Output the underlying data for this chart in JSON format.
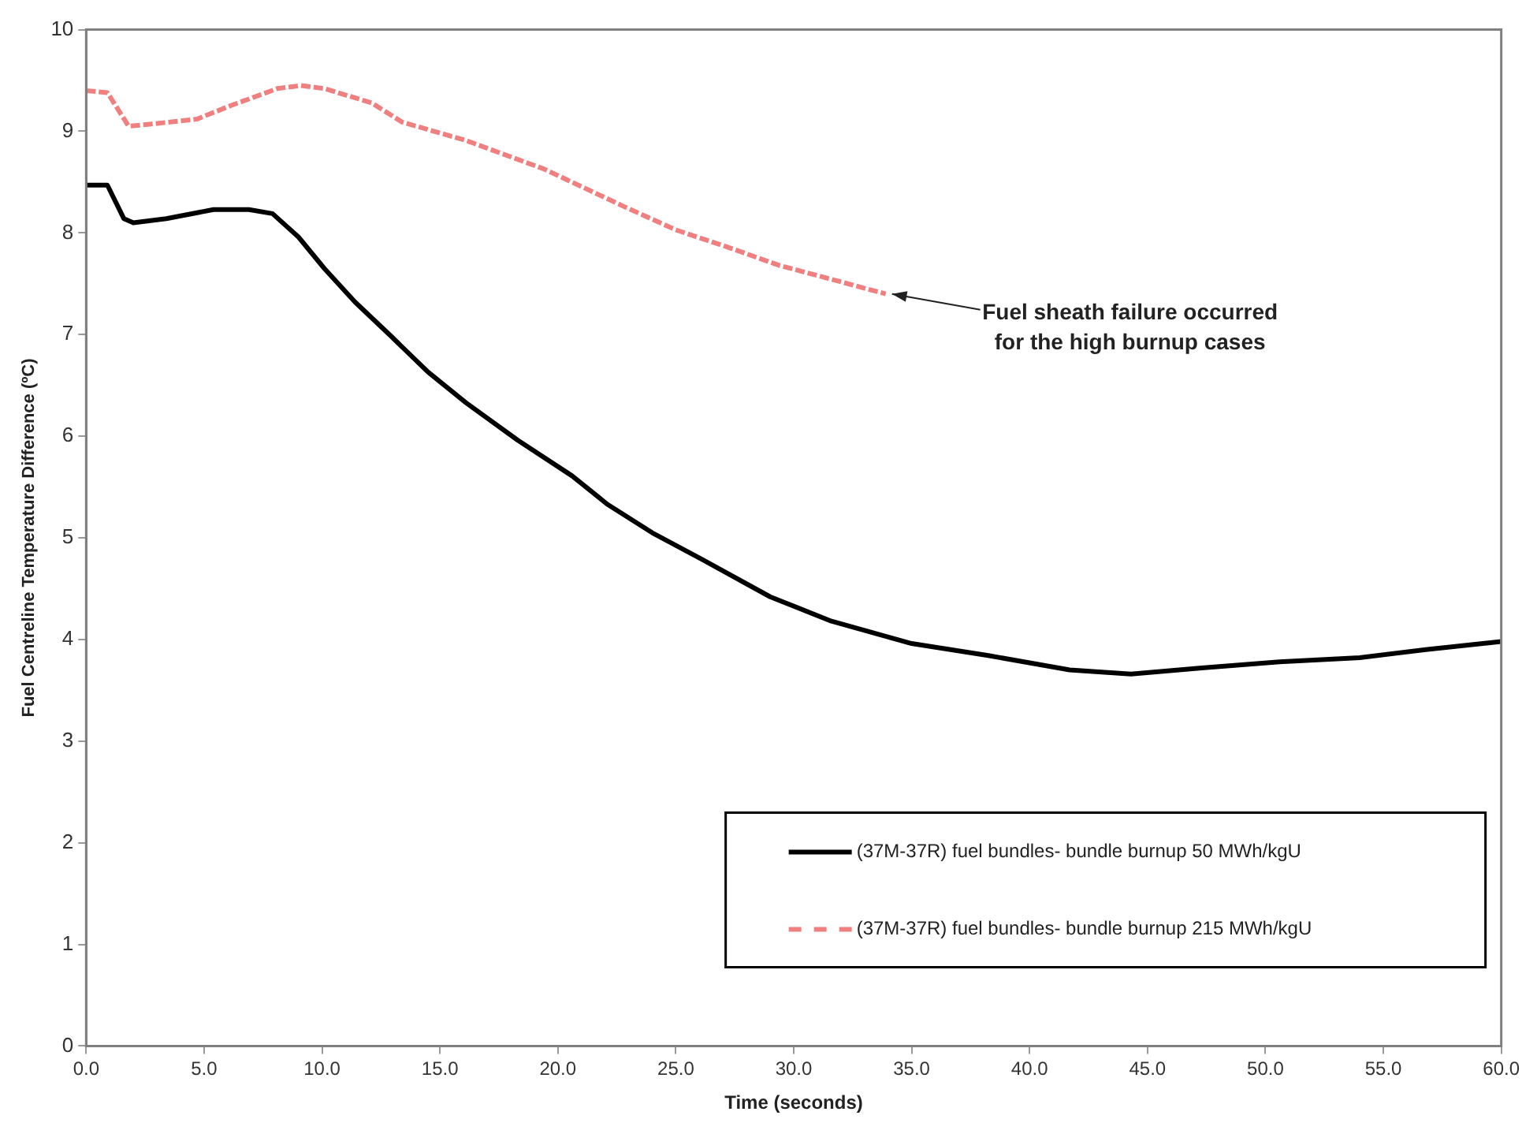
{
  "chart_data": {
    "type": "line",
    "xlabel": "Time (seconds)",
    "ylabel": "Fuel Centreline Temperature Difference (ºC)",
    "xlim": [
      0,
      60
    ],
    "ylim": [
      0,
      10
    ],
    "xticks": [
      {
        "value": 0,
        "label": "0.0"
      },
      {
        "value": 5,
        "label": "5.0"
      },
      {
        "value": 10,
        "label": "10.0"
      },
      {
        "value": 15,
        "label": "15.0"
      },
      {
        "value": 20,
        "label": "20.0"
      },
      {
        "value": 25,
        "label": "25.0"
      },
      {
        "value": 30,
        "label": "30.0"
      },
      {
        "value": 35,
        "label": "35.0"
      },
      {
        "value": 40,
        "label": "40.0"
      },
      {
        "value": 45,
        "label": "45.0"
      },
      {
        "value": 50,
        "label": "50.0"
      },
      {
        "value": 55,
        "label": "55.0"
      },
      {
        "value": 60,
        "label": "60.0"
      }
    ],
    "yticks": [
      0,
      1,
      2,
      3,
      4,
      5,
      6,
      7,
      8,
      9,
      10
    ],
    "grid": false,
    "legend": "bottom right",
    "marker": "none",
    "series": [
      {
        "name": "(37M-37R) fuel bundles- bundle burnup 50 MWh/kgU",
        "color": "#000000",
        "line_style": "solid",
        "x": [
          0,
          0.9,
          1.6,
          2.0,
          3.4,
          5.4,
          6.9,
          7.9,
          9.0,
          10.1,
          11.4,
          12.9,
          14.5,
          16.1,
          18.3,
          20.6,
          22.1,
          24,
          26.1,
          29,
          31.6,
          35,
          38.3,
          41.7,
          44.3,
          47.3,
          50.6,
          54,
          56.8,
          60
        ],
        "values": [
          8.47,
          8.47,
          8.14,
          8.1,
          8.14,
          8.23,
          8.23,
          8.19,
          7.96,
          7.65,
          7.32,
          6.99,
          6.63,
          6.33,
          5.96,
          5.61,
          5.33,
          5.05,
          4.79,
          4.42,
          4.18,
          3.96,
          3.84,
          3.7,
          3.66,
          3.72,
          3.78,
          3.82,
          3.9,
          3.98
        ]
      },
      {
        "name": "(37M-37R) fuel bundles- bundle burnup 215 MWh/kgU",
        "color": "#f08080",
        "line_style": "dashed",
        "x": [
          0,
          0.9,
          1.8,
          2.7,
          4.7,
          6.1,
          8.1,
          9.1,
          10.1,
          12.1,
          13.4,
          16.1,
          19.4,
          22.8,
          25,
          27.2,
          29.4,
          31.5,
          33.9
        ],
        "values": [
          9.4,
          9.38,
          9.05,
          9.07,
          9.12,
          9.25,
          9.42,
          9.45,
          9.42,
          9.28,
          9.09,
          8.91,
          8.63,
          8.26,
          8.03,
          7.86,
          7.68,
          7.55,
          7.4
        ]
      }
    ],
    "annotations": [
      {
        "text": "Fuel sheath failure occurred for the high burnup cases",
        "x": 33.9,
        "y": 7.4
      }
    ]
  }
}
